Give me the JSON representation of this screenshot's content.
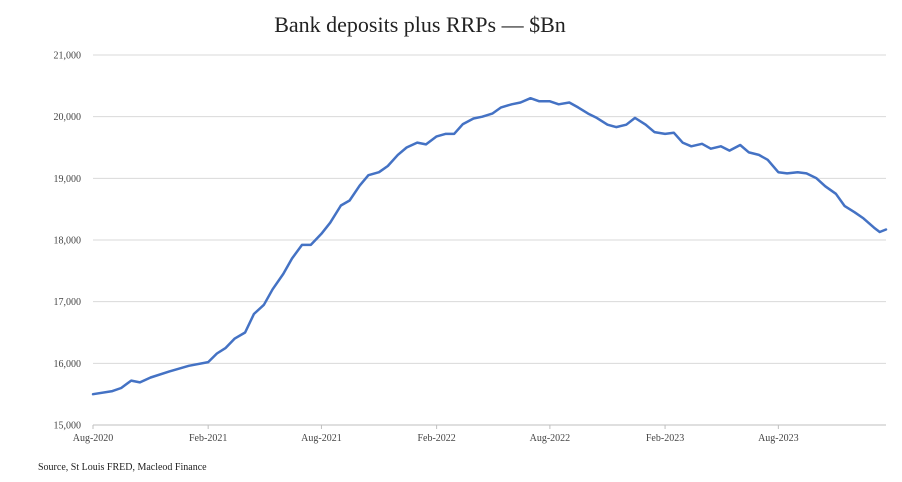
{
  "chart_data": {
    "type": "line",
    "title": "Bank deposits plus RRPs — $Bn",
    "source": "Source, St Louis FRED, Macleod Finance",
    "xlabel": "",
    "ylabel": "",
    "ylim": [
      15000,
      21000
    ],
    "y_ticks": [
      {
        "value": 15000,
        "label": "15,000"
      },
      {
        "value": 16000,
        "label": "16,000"
      },
      {
        "value": 17000,
        "label": "17,000"
      },
      {
        "value": 18000,
        "label": "18,000"
      },
      {
        "value": 19000,
        "label": "19,000"
      },
      {
        "value": 20000,
        "label": "20,000"
      },
      {
        "value": 21000,
        "label": "21,000"
      }
    ],
    "x_range": [
      "2020-08-01",
      "2024-01-20"
    ],
    "x_ticks": [
      {
        "date": "2020-08-01",
        "label": "Aug-2020"
      },
      {
        "date": "2021-02-01",
        "label": "Feb-2021"
      },
      {
        "date": "2021-08-01",
        "label": "Aug-2021"
      },
      {
        "date": "2022-02-01",
        "label": "Feb-2022"
      },
      {
        "date": "2022-08-01",
        "label": "Aug-2022"
      },
      {
        "date": "2023-02-01",
        "label": "Feb-2023"
      },
      {
        "date": "2023-08-01",
        "label": "Aug-2023"
      }
    ],
    "grid": true,
    "series": [
      {
        "name": "",
        "color": "#4472C4",
        "x": [
          "2020-08-01",
          "2020-09-01",
          "2020-09-15",
          "2020-10-01",
          "2020-10-15",
          "2020-11-01",
          "2020-12-01",
          "2021-01-01",
          "2021-02-01",
          "2021-02-15",
          "2021-03-01",
          "2021-03-15",
          "2021-04-01",
          "2021-04-15",
          "2021-05-01",
          "2021-05-15",
          "2021-06-01",
          "2021-06-15",
          "2021-07-01",
          "2021-07-15",
          "2021-08-01",
          "2021-08-15",
          "2021-09-01",
          "2021-09-15",
          "2021-10-01",
          "2021-10-15",
          "2021-11-01",
          "2021-11-15",
          "2021-12-01",
          "2021-12-15",
          "2022-01-01",
          "2022-01-15",
          "2022-02-01",
          "2022-02-15",
          "2022-03-01",
          "2022-03-15",
          "2022-04-01",
          "2022-04-15",
          "2022-05-01",
          "2022-05-15",
          "2022-06-01",
          "2022-06-15",
          "2022-07-01",
          "2022-07-15",
          "2022-08-01",
          "2022-08-15",
          "2022-09-01",
          "2022-09-15",
          "2022-10-01",
          "2022-10-15",
          "2022-11-01",
          "2022-11-15",
          "2022-12-01",
          "2022-12-15",
          "2023-01-01",
          "2023-01-15",
          "2023-02-01",
          "2023-02-15",
          "2023-03-01",
          "2023-03-15",
          "2023-04-01",
          "2023-04-15",
          "2023-05-01",
          "2023-05-15",
          "2023-06-01",
          "2023-06-15",
          "2023-07-01",
          "2023-07-15",
          "2023-08-01",
          "2023-08-15",
          "2023-09-01",
          "2023-09-15",
          "2023-10-01",
          "2023-10-15",
          "2023-11-01",
          "2023-11-15",
          "2023-12-01",
          "2023-12-15",
          "2024-01-01",
          "2024-01-10",
          "2024-01-20"
        ],
        "values": [
          15500,
          15550,
          15600,
          15720,
          15690,
          15770,
          15870,
          15960,
          16020,
          16160,
          16250,
          16400,
          16500,
          16800,
          16950,
          17200,
          17450,
          17700,
          17920,
          17920,
          18100,
          18280,
          18560,
          18640,
          18880,
          19050,
          19100,
          19200,
          19380,
          19500,
          19580,
          19550,
          19680,
          19720,
          19720,
          19880,
          19970,
          20000,
          20050,
          20150,
          20200,
          20230,
          20300,
          20250,
          20250,
          20200,
          20230,
          20150,
          20050,
          19980,
          19870,
          19830,
          19870,
          19980,
          19870,
          19750,
          19720,
          19740,
          19580,
          19520,
          19560,
          19480,
          19520,
          19450,
          19540,
          19420,
          19380,
          19300,
          19100,
          19080,
          19100,
          19080,
          19000,
          18870,
          18750,
          18550,
          18450,
          18350,
          18200,
          18130,
          18170
        ]
      }
    ]
  }
}
